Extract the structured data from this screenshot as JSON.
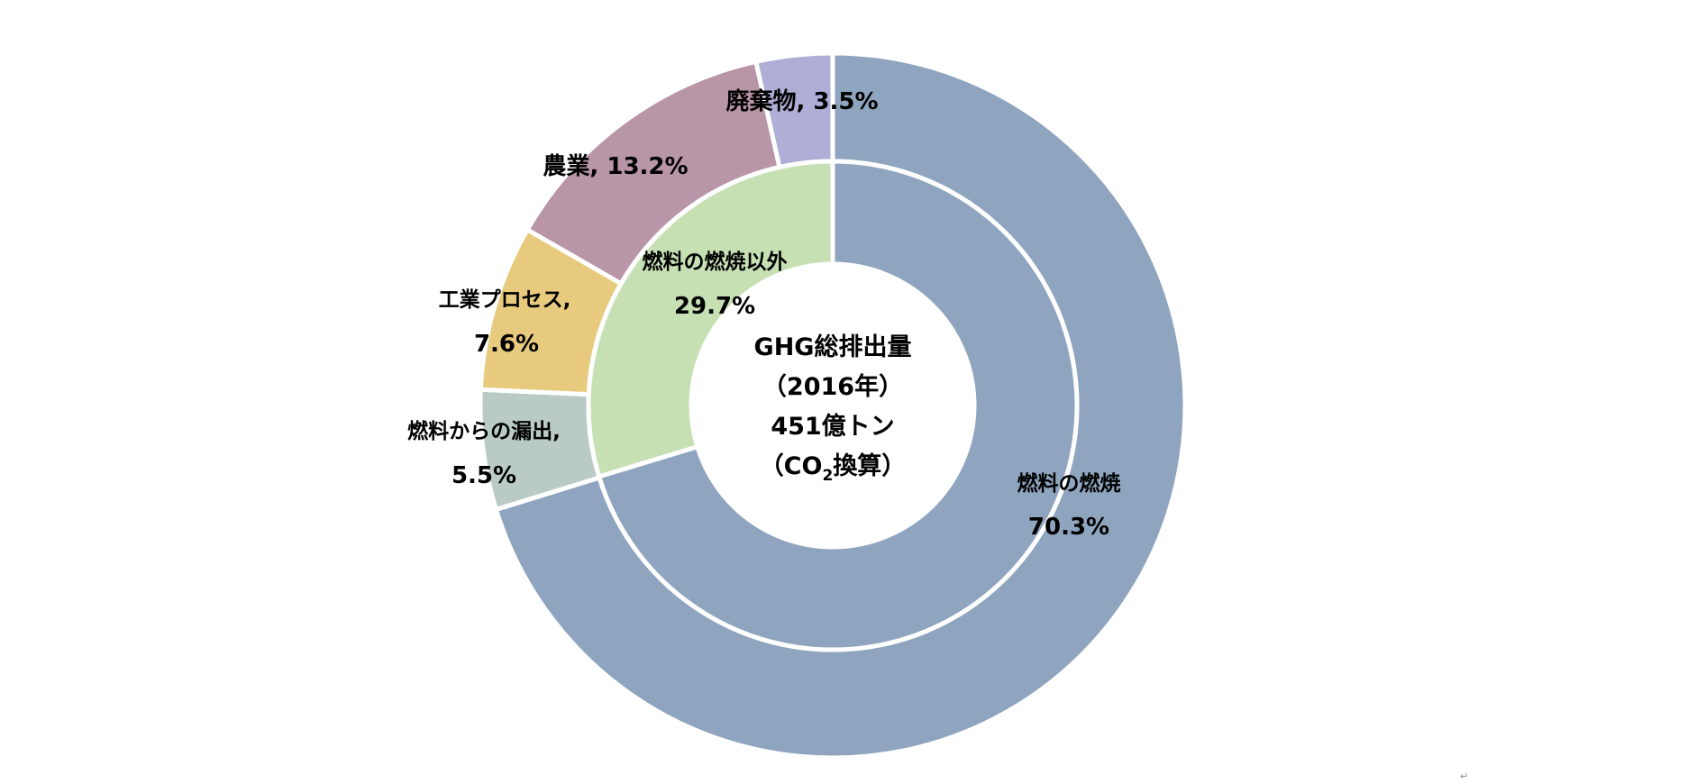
{
  "chart_data": {
    "type": "pie",
    "variant": "nested-donut",
    "center_label": {
      "line1": "GHG総排出量",
      "line2": "（2016年）",
      "line3": "451億トン",
      "line4_prefix": "（CO",
      "line4_sub": "2",
      "line4_suffix": "換算）"
    },
    "inner_ring": {
      "slices": [
        {
          "name": "燃料の燃焼",
          "value": 70.3,
          "label_value": "70.3%",
          "color": "#8fa5bf"
        },
        {
          "name": "燃料の燃焼以外",
          "value": 29.7,
          "label_value": "29.7%",
          "color": "#c6e0b4"
        }
      ]
    },
    "outer_ring": {
      "slices": [
        {
          "name": "燃料の燃焼",
          "value": 70.3,
          "label_name": "",
          "label_value": "",
          "color": "#8fa5bf"
        },
        {
          "name": "燃料からの漏出",
          "value": 5.5,
          "label_name": "燃料からの漏出,",
          "label_value": "5.5%",
          "color": "#b9cbc4"
        },
        {
          "name": "工業プロセス",
          "value": 7.6,
          "label_name": "工業プロセス,",
          "label_value": "7.6%",
          "color": "#e8ca7e"
        },
        {
          "name": "農業",
          "value": 13.2,
          "label_name": "農業, 13.2%",
          "label_value": "",
          "color": "#b995a8"
        },
        {
          "name": "廃棄物",
          "value": 3.5,
          "label_name": "廃棄物, 3.5%",
          "label_value": "",
          "color": "#aeaed7"
        }
      ]
    },
    "legend": "none",
    "start_angle": "12 o'clock, clockwise"
  },
  "page_mark": "↵"
}
